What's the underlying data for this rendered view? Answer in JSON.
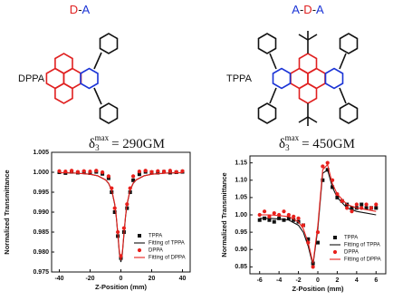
{
  "molecules": [
    {
      "name": "DPPA",
      "label_parts": [
        "D",
        "-",
        "A"
      ],
      "label_colors": [
        "#e02020",
        "#1a1a1a",
        "#1a33d6"
      ],
      "sigma": {
        "symbol": "δ",
        "sub": "3",
        "sup": "max",
        "text": "= 290GM"
      }
    },
    {
      "name": "TPPA",
      "label_parts": [
        "A",
        "-",
        "D",
        "-",
        "A"
      ],
      "label_colors": [
        "#1a33d6",
        "#1a1a1a",
        "#e02020",
        "#1a1a1a",
        "#1a33d6"
      ],
      "sigma": {
        "symbol": "δ",
        "sub": "3",
        "sup": "max",
        "text": "= 450GM"
      }
    }
  ],
  "chart_data": [
    {
      "type": "line",
      "xlabel": "Z-Position (mm)",
      "ylabel": "Normalized Transmittance",
      "xlim": [
        -45,
        45
      ],
      "xticks": [
        -40,
        -20,
        0,
        20,
        40
      ],
      "ylim": [
        0.975,
        1.005
      ],
      "yticks": [
        0.975,
        {
          "value": 0.98,
          "label": "0.980"
        },
        0.985,
        {
          "value": 0.99,
          "label": "0.990"
        },
        0.995,
        {
          "value": 1,
          "label": "1.000"
        },
        1.005
      ],
      "legend": "lower right",
      "series": [
        {
          "name": "TPPA",
          "color": "#111111",
          "mode": "markers",
          "marker": "square",
          "x": [
            -40,
            -36,
            -32,
            -28,
            -24,
            -20,
            -16,
            -12,
            -8,
            -6,
            -4,
            -2,
            0,
            2,
            4,
            6,
            8,
            12,
            16,
            20,
            24,
            28,
            32,
            36,
            40
          ],
          "values": [
            1.0,
            0.9998,
            1.0001,
            0.9999,
            1.0,
            0.9998,
            1.0001,
            0.9996,
            0.9985,
            0.995,
            0.99,
            0.984,
            0.9785,
            0.985,
            0.991,
            0.995,
            0.998,
            0.9995,
            1.0001,
            1.0,
            0.9999,
            1.0001,
            0.9999,
            1.0,
            1.0001
          ]
        },
        {
          "name": "Fitting of TPPA",
          "color": "#111111",
          "mode": "line",
          "x": [
            -40,
            -30,
            -20,
            -15,
            -10,
            -8,
            -6,
            -4,
            -3,
            -2,
            -1,
            0,
            1,
            2,
            3,
            4,
            6,
            8,
            10,
            15,
            20,
            30,
            40
          ],
          "values": [
            0.9999,
            0.9998,
            0.9995,
            0.9991,
            0.9981,
            0.9972,
            0.9955,
            0.9919,
            0.98875,
            0.9844,
            0.97975,
            0.9775,
            0.97975,
            0.9844,
            0.98875,
            0.9919,
            0.9955,
            0.9972,
            0.9981,
            0.9991,
            0.9995,
            0.9998,
            0.9999
          ]
        },
        {
          "name": "DPPA",
          "color": "#e8201c",
          "mode": "markers",
          "marker": "circle",
          "x": [
            -40,
            -36,
            -32,
            -28,
            -24,
            -20,
            -16,
            -12,
            -8,
            -6,
            -4,
            -2,
            0,
            2,
            4,
            6,
            8,
            12,
            16,
            20,
            24,
            28,
            32,
            36,
            40
          ],
          "values": [
            1.0003,
            1.0002,
            1.0004,
            1.0001,
            1.0003,
            1.0002,
            1.0004,
            1.0,
            0.999,
            0.996,
            0.991,
            0.985,
            0.979,
            0.986,
            0.992,
            0.996,
            0.999,
            1.0002,
            1.0004,
            1.0001,
            1.0003,
            1.0002,
            1.0004,
            1.0001,
            1.0003
          ]
        },
        {
          "name": "Fitting of DPPA",
          "color": "#e8201c",
          "mode": "line",
          "x": [
            -40,
            -30,
            -20,
            -15,
            -10,
            -8,
            -6,
            -4,
            -3,
            -2,
            -1,
            0,
            1,
            2,
            3,
            4,
            6,
            8,
            10,
            15,
            20,
            30,
            40
          ],
          "values": [
            0.9999,
            0.9998,
            0.9995,
            0.9991,
            0.9981,
            0.9973,
            0.9956,
            0.9921,
            0.989,
            0.9848,
            0.9802,
            0.978,
            0.9802,
            0.9848,
            0.989,
            0.9921,
            0.9956,
            0.9973,
            0.9981,
            0.9991,
            0.9995,
            0.9998,
            0.9999
          ]
        }
      ]
    },
    {
      "type": "line",
      "xlabel": "Z-Position (mm)",
      "ylabel": "Normalized Transmittance",
      "xlim": [
        -7,
        7
      ],
      "xticks": [
        -6,
        -4,
        -2,
        0,
        2,
        4,
        6
      ],
      "ylim": [
        0.83,
        1.17
      ],
      "yticks": [
        0.85,
        {
          "value": 0.9,
          "label": "0.90"
        },
        0.95,
        {
          "value": 1,
          "label": "1.00"
        },
        1.05,
        {
          "value": 1.1,
          "label": "1.10"
        },
        1.15
      ],
      "legend": "lower right",
      "series": [
        {
          "name": "TPPA",
          "color": "#111111",
          "mode": "markers",
          "marker": "square",
          "x": [
            -6,
            -5.5,
            -5,
            -4.5,
            -4,
            -3.5,
            -3,
            -2.5,
            -2,
            -1.5,
            -1,
            -0.5,
            0,
            0.5,
            1,
            1.5,
            2,
            2.5,
            3,
            3.5,
            4,
            4.5,
            5,
            5.5,
            6
          ],
          "values": [
            0.985,
            0.99,
            0.985,
            0.98,
            0.99,
            0.985,
            0.99,
            0.985,
            0.98,
            0.97,
            0.93,
            0.86,
            0.92,
            1.1,
            1.13,
            1.08,
            1.05,
            1.04,
            1.03,
            1.02,
            1.02,
            1.03,
            1.02,
            1.02,
            1.02
          ]
        },
        {
          "name": "Fitting of TPPA",
          "color": "#111111",
          "mode": "line",
          "x": [
            -6,
            -5,
            -4,
            -3,
            -2,
            -1.5,
            -1,
            -0.5,
            0,
            0.5,
            1,
            1.5,
            2,
            3,
            4,
            5,
            6
          ],
          "values": [
            0.99,
            0.99,
            0.988,
            0.985,
            0.97,
            0.95,
            0.91,
            0.855,
            0.96,
            1.12,
            1.13,
            1.08,
            1.05,
            1.02,
            1.01,
            1.005,
            1.0
          ]
        },
        {
          "name": "DPPA",
          "color": "#e8201c",
          "mode": "markers",
          "marker": "circle",
          "x": [
            -6,
            -5.5,
            -5,
            -4.5,
            -4,
            -3.5,
            -3,
            -2.5,
            -2,
            -1.5,
            -1,
            -0.5,
            0,
            0.5,
            1,
            1.5,
            2,
            2.5,
            3,
            3.5,
            4,
            4.5,
            5,
            5.5,
            6
          ],
          "values": [
            1.0,
            1.01,
            0.995,
            1.005,
            1.0,
            1.01,
            1.0,
            0.995,
            0.99,
            0.97,
            0.92,
            0.85,
            0.95,
            1.14,
            1.15,
            1.1,
            1.06,
            1.04,
            1.02,
            1.01,
            1.03,
            1.02,
            1.03,
            1.02,
            1.03
          ]
        },
        {
          "name": "Fitting of DPPA",
          "color": "#e8201c",
          "mode": "line",
          "x": [
            -6,
            -5,
            -4,
            -3,
            -2,
            -1.5,
            -1,
            -0.5,
            0,
            0.5,
            1,
            1.5,
            2,
            3,
            4,
            5,
            6
          ],
          "values": [
            1.0,
            1.0,
            0.998,
            0.995,
            0.98,
            0.96,
            0.92,
            0.86,
            0.97,
            1.13,
            1.145,
            1.09,
            1.06,
            1.03,
            1.02,
            1.015,
            1.01
          ]
        }
      ]
    }
  ]
}
